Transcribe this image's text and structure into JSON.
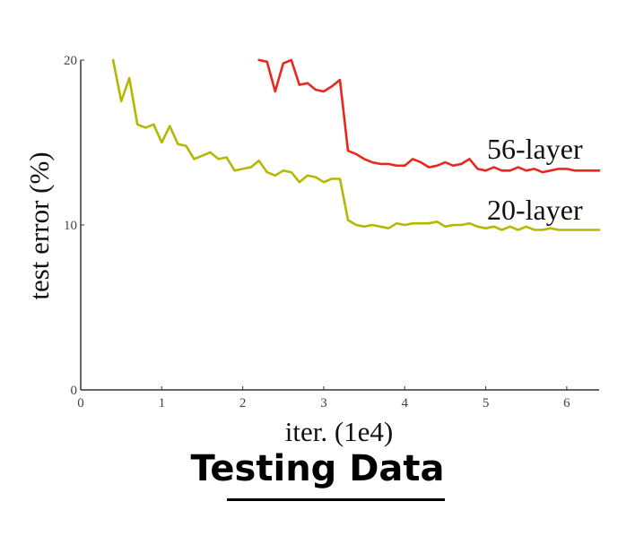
{
  "chart_data": {
    "type": "line",
    "xlabel": "iter. (1e4)",
    "ylabel": "test error (%)",
    "xlim": [
      0,
      6.4
    ],
    "ylim": [
      0,
      20
    ],
    "xticks": [
      "0",
      "1",
      "2",
      "3",
      "4",
      "5",
      "6"
    ],
    "yticks": [
      "0",
      "10",
      "20"
    ],
    "grid": false,
    "series": [
      {
        "name": "56-layer",
        "color": "#e8271e",
        "x": [
          2.2,
          2.3,
          2.4,
          2.5,
          2.6,
          2.7,
          2.8,
          2.9,
          3.0,
          3.1,
          3.2,
          3.3,
          3.4,
          3.5,
          3.6,
          3.7,
          3.8,
          3.9,
          4.0,
          4.1,
          4.2,
          4.3,
          4.4,
          4.5,
          4.6,
          4.7,
          4.8,
          4.9,
          5.0,
          5.1,
          5.2,
          5.3,
          5.4,
          5.5,
          5.6,
          5.7,
          5.8,
          5.9,
          6.0,
          6.1,
          6.2,
          6.3,
          6.4
        ],
        "y": [
          20.0,
          19.9,
          18.1,
          19.8,
          20.0,
          18.5,
          18.6,
          18.2,
          18.1,
          18.4,
          18.8,
          14.5,
          14.3,
          14.0,
          13.8,
          13.7,
          13.7,
          13.6,
          13.6,
          14.0,
          13.8,
          13.5,
          13.6,
          13.8,
          13.6,
          13.7,
          14.0,
          13.4,
          13.3,
          13.5,
          13.3,
          13.3,
          13.5,
          13.3,
          13.4,
          13.2,
          13.3,
          13.4,
          13.4,
          13.3,
          13.3,
          13.3,
          13.3
        ]
      },
      {
        "name": "20-layer",
        "color": "#b5b800",
        "x": [
          0.4,
          0.5,
          0.6,
          0.7,
          0.8,
          0.9,
          1.0,
          1.1,
          1.2,
          1.3,
          1.4,
          1.5,
          1.6,
          1.7,
          1.8,
          1.9,
          2.0,
          2.1,
          2.2,
          2.3,
          2.4,
          2.5,
          2.6,
          2.7,
          2.8,
          2.9,
          3.0,
          3.1,
          3.2,
          3.3,
          3.4,
          3.5,
          3.6,
          3.7,
          3.8,
          3.9,
          4.0,
          4.1,
          4.2,
          4.3,
          4.4,
          4.5,
          4.6,
          4.7,
          4.8,
          4.9,
          5.0,
          5.1,
          5.2,
          5.3,
          5.4,
          5.5,
          5.6,
          5.7,
          5.8,
          5.9,
          6.0,
          6.1,
          6.2,
          6.3,
          6.4
        ],
        "y": [
          20.0,
          17.5,
          18.9,
          16.1,
          15.9,
          16.1,
          15.0,
          16.0,
          14.9,
          14.8,
          14.0,
          14.2,
          14.4,
          14.0,
          14.1,
          13.3,
          13.4,
          13.5,
          13.9,
          13.2,
          13.0,
          13.3,
          13.2,
          12.6,
          13.0,
          12.9,
          12.6,
          12.8,
          12.8,
          10.3,
          10.0,
          9.9,
          10.0,
          9.9,
          9.8,
          10.1,
          10.0,
          10.1,
          10.1,
          10.1,
          10.2,
          9.9,
          10.0,
          10.0,
          10.1,
          9.9,
          9.8,
          9.9,
          9.7,
          9.9,
          9.7,
          9.9,
          9.7,
          9.7,
          9.8,
          9.7,
          9.7,
          9.7,
          9.7,
          9.7,
          9.7
        ]
      }
    ]
  },
  "caption": "Testing Data"
}
